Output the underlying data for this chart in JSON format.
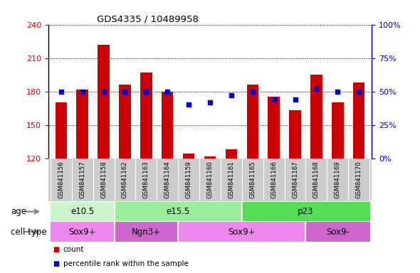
{
  "title": "GDS4335 / 10489958",
  "samples": [
    "GSM841156",
    "GSM841157",
    "GSM841158",
    "GSM841162",
    "GSM841163",
    "GSM841164",
    "GSM841159",
    "GSM841160",
    "GSM841161",
    "GSM841165",
    "GSM841166",
    "GSM841167",
    "GSM841168",
    "GSM841169",
    "GSM841170"
  ],
  "counts": [
    170,
    182,
    222,
    186,
    197,
    180,
    124,
    122,
    128,
    186,
    175,
    163,
    195,
    170,
    188
  ],
  "percentiles": [
    50,
    50,
    50,
    50,
    50,
    50,
    40,
    42,
    47,
    50,
    44,
    44,
    52,
    50,
    50
  ],
  "ylim_left": [
    120,
    240
  ],
  "ylim_right": [
    0,
    100
  ],
  "yticks_left": [
    120,
    150,
    180,
    210,
    240
  ],
  "yticks_right": [
    0,
    25,
    50,
    75,
    100
  ],
  "bar_color": "#cc0000",
  "dot_color": "#0000cc",
  "age_groups": [
    {
      "label": "e10.5",
      "start": 0,
      "end": 3,
      "color": "#ccf5cc"
    },
    {
      "label": "e15.5",
      "start": 3,
      "end": 9,
      "color": "#99ee99"
    },
    {
      "label": "p23",
      "start": 9,
      "end": 15,
      "color": "#55dd55"
    }
  ],
  "cell_groups": [
    {
      "label": "Sox9+",
      "start": 0,
      "end": 3,
      "color": "#ee88ee"
    },
    {
      "label": "Ngn3+",
      "start": 3,
      "end": 6,
      "color": "#cc66cc"
    },
    {
      "label": "Sox9+",
      "start": 6,
      "end": 12,
      "color": "#ee88ee"
    },
    {
      "label": "Sox9-",
      "start": 12,
      "end": 15,
      "color": "#cc66cc"
    }
  ],
  "legend_count_label": "count",
  "legend_pct_label": "percentile rank within the sample",
  "left_axis_color": "#cc0000",
  "right_axis_color": "#0000cc",
  "tick_label_area_color": "#cccccc",
  "bg_color": "#ffffff"
}
